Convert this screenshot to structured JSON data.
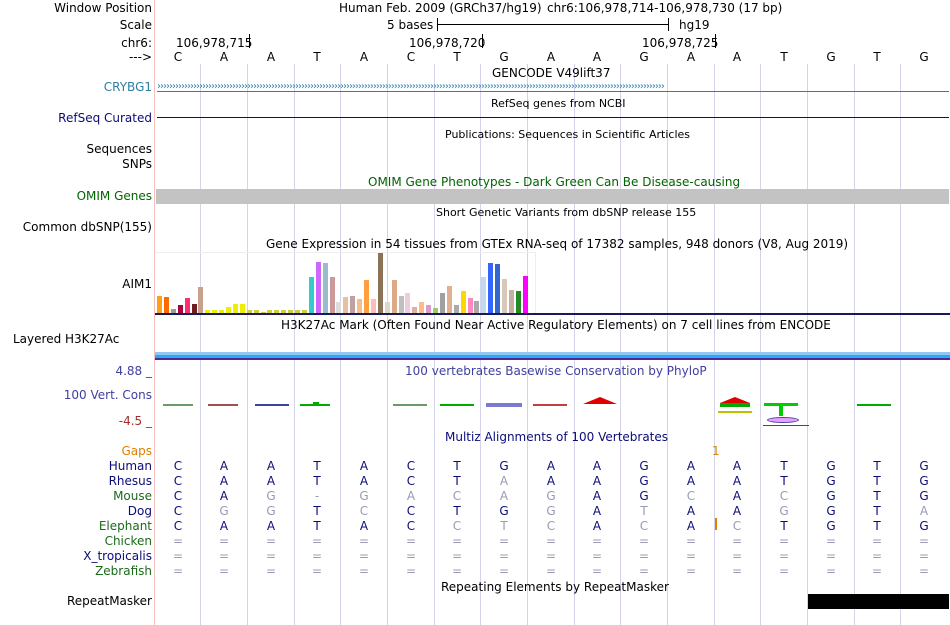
{
  "header": {
    "window_position_label": "Window Position",
    "assembly_text": "Human Feb. 2009 (GRCh37/hg19)",
    "position_text": "chr6:106,978,714-106,978,730 (17 bp)",
    "scale_label": "Scale",
    "scale_text": "5 bases",
    "scale_assembly": "hg19",
    "chrom_label": "chr6:",
    "ruler_ticks": [
      "106,978,715",
      "106,978,720",
      "106,978,725"
    ],
    "strand_label": "--->",
    "bases": [
      "C",
      "A",
      "A",
      "T",
      "A",
      "C",
      "T",
      "G",
      "A",
      "A",
      "G",
      "A",
      "A",
      "T",
      "G",
      "T",
      "G"
    ]
  },
  "tracks": {
    "gencode": {
      "title": "GENCODE V49lift37",
      "gene_label": "CRYBG1",
      "color": "#2c7ea6"
    },
    "refseq": {
      "title": "RefSeq genes from NCBI",
      "label": "RefSeq Curated",
      "color": "#0c0c78"
    },
    "publications": {
      "title": "Publications: Sequences in Scientific Articles",
      "label_line1": "Sequences",
      "label_line2": "SNPs"
    },
    "omim": {
      "title": "OMIM Gene Phenotypes - Dark Green Can Be Disease-causing",
      "label": "OMIM Genes",
      "color": "#006400"
    },
    "dbsnp": {
      "title": "Short Genetic Variants from dbSNP release 155",
      "label": "Common dbSNP(155)"
    },
    "gtex": {
      "title": "Gene Expression in 54 tissues from GTEx RNA-seq of 17382 samples, 948 donors (V8, Aug 2019)",
      "label": "AIM1",
      "tissue_expression": [
        0.3,
        0.28,
        0.08,
        0.14,
        0.26,
        0.16,
        0.44,
        0.06,
        0.06,
        0.06,
        0.12,
        0.16,
        0.16,
        0.06,
        0.06,
        0.04,
        0.06,
        0.06,
        0.06,
        0.06,
        0.06,
        0.06,
        0.6,
        0.86,
        0.84,
        0.6,
        0.2,
        0.28,
        0.3,
        0.24,
        0.56,
        0.24,
        1.0,
        0.2,
        0.56,
        0.3,
        0.34,
        0.12,
        0.2,
        0.14,
        0.1,
        0.34,
        0.46,
        0.14,
        0.38,
        0.26,
        0.22,
        0.6,
        0.84,
        0.82,
        0.58,
        0.4,
        0.38,
        0.62
      ],
      "tissue_colors": [
        "#ff9f1a",
        "#ff6a00",
        "#9b9b9b",
        "#b00040",
        "#ff2e6c",
        "#6e1e1e",
        "#c8a08c",
        "#eeee00",
        "#eeee00",
        "#eeee00",
        "#eeee00",
        "#eeee00",
        "#eeee00",
        "#cfcf3a",
        "#cfcf3a",
        "#cfcf3a",
        "#cfcf3a",
        "#cfcf3a",
        "#cfcf3a",
        "#cfcf3a",
        "#cfcf3a",
        "#cfcf3a",
        "#33cccc",
        "#cc66ff",
        "#99bbcc",
        "#cc9999",
        "#dddddd",
        "#e8c0a0",
        "#c0a0a0",
        "#f0c090",
        "#ff9f40",
        "#ffbbbb",
        "#8b7355",
        "#ddd8c8",
        "#ddaa88",
        "#c0c0c0",
        "#eeccdd",
        "#e0b0a0",
        "#ffbb88",
        "#dd99cc",
        "#99cc66",
        "#a0a0a0",
        "#e0b090",
        "#aaaaaa",
        "#ffd700",
        "#ff8ac0",
        "#a9a9a9",
        "#c0d8f0",
        "#3366ff",
        "#3366cc",
        "#d8c8b8",
        "#c8b0a0",
        "#228b22",
        "#ff00ff"
      ]
    },
    "h3k27ac": {
      "title": "H3K27Ac Mark (Often Found Near Active Regulatory Elements) on 7 cell lines from ENCODE",
      "label": "Layered H3K27Ac"
    },
    "phylop": {
      "title": "100 vertebrates Basewise Conservation by PhyloP",
      "label": "100 Vert. Cons",
      "max_label": "4.88 _",
      "min_label": "-4.5 _",
      "color": "#4040a0",
      "min_color": "#a03030"
    },
    "multiz": {
      "title": "Multiz Alignments of 100 Vertebrates",
      "gaps_label": "Gaps",
      "gap_marker": "1",
      "rows": [
        {
          "species": "Human",
          "color": "#0c0c78",
          "bases": [
            "C",
            "A",
            "A",
            "T",
            "A",
            "C",
            "T",
            "G",
            "A",
            "A",
            "G",
            "A",
            "A",
            "T",
            "G",
            "T",
            "G"
          ]
        },
        {
          "species": "Rhesus",
          "color": "#0c0c78",
          "bases": [
            "C",
            "A",
            "A",
            "T",
            "A",
            "C",
            "T",
            "A",
            "A",
            "A",
            "G",
            "A",
            "A",
            "T",
            "G",
            "T",
            "G"
          ]
        },
        {
          "species": "Mouse",
          "color": "#1a6a1a",
          "bases": [
            "C",
            "A",
            "G",
            "-",
            "G",
            "A",
            "C",
            "A",
            "G",
            "A",
            "G",
            "C",
            "A",
            "C",
            "G",
            "T",
            "G"
          ]
        },
        {
          "species": "Dog",
          "color": "#0c0c78",
          "bases": [
            "C",
            "G",
            "G",
            "T",
            "C",
            "C",
            "T",
            "G",
            "G",
            "A",
            "T",
            "A",
            "A",
            "G",
            "G",
            "T",
            "A"
          ]
        },
        {
          "species": "Elephant",
          "color": "#1a6a1a",
          "bases": [
            "C",
            "A",
            "A",
            "T",
            "A",
            "C",
            "C",
            "T",
            "C",
            "A",
            "C",
            "A",
            "C",
            "T",
            "G",
            "T",
            "G"
          ]
        },
        {
          "species": "Chicken",
          "color": "#1a6a1a",
          "bases": [
            "=",
            "=",
            "=",
            "=",
            "=",
            "=",
            "=",
            "=",
            "=",
            "=",
            "=",
            "=",
            "=",
            "=",
            "=",
            "=",
            "="
          ]
        },
        {
          "species": "X_tropicalis",
          "color": "#0c0c78",
          "bases": [
            "=",
            "=",
            "=",
            "=",
            "=",
            "=",
            "=",
            "=",
            "=",
            "=",
            "=",
            "=",
            "=",
            "=",
            "=",
            "=",
            "="
          ]
        },
        {
          "species": "Zebrafish",
          "color": "#1a6a1a",
          "bases": [
            "=",
            "=",
            "=",
            "=",
            "=",
            "=",
            "=",
            "=",
            "=",
            "=",
            "=",
            "=",
            "=",
            "=",
            "=",
            "=",
            "="
          ]
        }
      ]
    },
    "repeatmasker": {
      "title": "Repeating Elements by RepeatMasker",
      "label": "RepeatMasker"
    }
  }
}
